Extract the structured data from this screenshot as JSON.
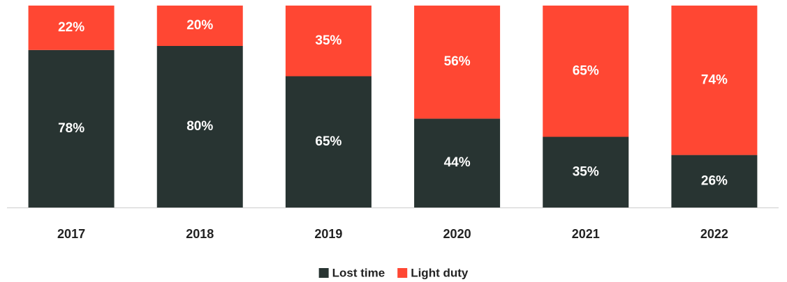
{
  "chart_data": {
    "type": "stacked-bar",
    "categories": [
      "2017",
      "2018",
      "2019",
      "2020",
      "2021",
      "2022"
    ],
    "series": [
      {
        "name": "Lost time",
        "color": "#283432",
        "values": [
          78,
          80,
          65,
          44,
          35,
          26
        ],
        "value_labels": [
          "78%",
          "80%",
          "65%",
          "44%",
          "35%",
          "26%"
        ]
      },
      {
        "name": "Light duty",
        "color": "#ff4733",
        "values": [
          22,
          20,
          35,
          56,
          65,
          74
        ],
        "value_labels": [
          "22%",
          "20%",
          "35%",
          "56%",
          "65%",
          "74%"
        ]
      }
    ],
    "ylim": [
      0,
      100
    ],
    "legend": "bottom"
  }
}
